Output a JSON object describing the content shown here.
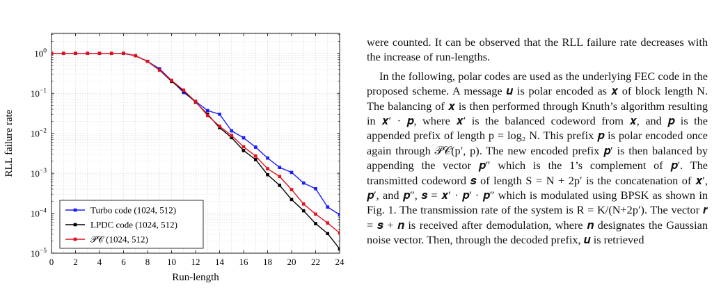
{
  "chart_data": {
    "type": "line",
    "title": "",
    "xlabel": "Run-length",
    "ylabel": "RLL failure rate",
    "xlim": [
      0,
      24
    ],
    "ylim_log10": [
      -5,
      0.5
    ],
    "yscale": "log",
    "x_ticks": [
      "0",
      "2",
      "4",
      "6",
      "8",
      "10",
      "12",
      "14",
      "16",
      "18",
      "20",
      "22",
      "24"
    ],
    "y_ticks": [
      {
        "base": "10",
        "exp": "0"
      },
      {
        "base": "10",
        "exp": "−1"
      },
      {
        "base": "10",
        "exp": "−2"
      },
      {
        "base": "10",
        "exp": "−3"
      },
      {
        "base": "10",
        "exp": "−4"
      },
      {
        "base": "10",
        "exp": "−5"
      }
    ],
    "grid": true,
    "legend_position": "bottom-left",
    "series": [
      {
        "name": "Turbo code (1024, 512)",
        "color": "#1a1aff",
        "x": [
          0,
          1,
          2,
          3,
          4,
          5,
          6,
          7,
          8,
          9,
          10,
          11,
          12,
          13,
          14,
          15,
          16,
          17,
          18,
          19,
          20,
          21,
          22,
          23,
          24
        ],
        "y": [
          1,
          1,
          1,
          1,
          1,
          1,
          1,
          0.87,
          0.63,
          0.41,
          0.21,
          0.105,
          0.063,
          0.037,
          0.03,
          0.0115,
          0.0077,
          0.0045,
          0.0024,
          0.0014,
          0.00105,
          0.00057,
          0.00041,
          0.000143,
          9.2e-05
        ]
      },
      {
        "name": "LPDC code (1024, 512)",
        "color": "#000000",
        "x": [
          0,
          1,
          2,
          3,
          4,
          5,
          6,
          7,
          8,
          9,
          10,
          11,
          12,
          13,
          14,
          15,
          16,
          17,
          18,
          19,
          20,
          21,
          22,
          23,
          24
        ],
        "y": [
          1,
          1,
          1,
          1,
          1,
          1,
          1,
          0.87,
          0.63,
          0.38,
          0.2,
          0.115,
          0.06,
          0.03,
          0.0138,
          0.0078,
          0.0037,
          0.0022,
          0.00092,
          0.0005,
          0.00022,
          0.000115,
          5.5e-05,
          3.1e-05,
          1.28e-05
        ]
      },
      {
        "name": "PC(1024, 512)",
        "color": "#e0111f",
        "x": [
          0,
          1,
          2,
          3,
          4,
          5,
          6,
          7,
          8,
          9,
          10,
          11,
          12,
          13,
          14,
          15,
          16,
          17,
          18,
          19,
          20,
          21,
          22,
          23,
          24
        ],
        "y": [
          1,
          1,
          1,
          1,
          1,
          1,
          1,
          0.87,
          0.63,
          0.38,
          0.21,
          0.12,
          0.062,
          0.028,
          0.015,
          0.0088,
          0.0046,
          0.0027,
          0.0013,
          0.00083,
          0.00039,
          0.00017,
          9.5e-05,
          5.7e-05,
          3.2e-05
        ]
      }
    ]
  },
  "legend": [
    {
      "name": "Turbo code",
      "code": "(1024, 512)",
      "color": "#1a1aff"
    },
    {
      "name": "LPDC code",
      "code": "(1024, 512)",
      "color": "#000000"
    },
    {
      "name": "𝒫𝒞",
      "code": "(1024, 512)",
      "color": "#e0111f"
    }
  ],
  "body_text": {
    "para1": "were counted. It can be observed that the RLL failure rate decreases with the increase of run-lengths.",
    "para2": "In the following, polar codes are used as the underlying FEC code in the proposed scheme. A message 𝒖 is polar encoded as 𝒙 of block length N. The balancing of 𝒙 is then performed through Knuth’s algorithm resulting in 𝒙′ · 𝒑, where 𝒙′ is the balanced codeword from 𝒙, and 𝒑 is the appended prefix of length p = log₂ N. This prefix 𝒑 is polar encoded once again through 𝒫𝒞(p′, p). The new encoded prefix 𝒑′ is then balanced by appending the vector 𝒑″ which is the 1’s complement of 𝒑′. The transmitted codeword 𝒔 of length S = N + 2p′ is the concatenation of 𝒙′, 𝒑′, and 𝒑″, 𝒔 = 𝒙′ · 𝒑′ · 𝒑″ which is modulated using BPSK as shown in Fig. 1. The transmission rate of the system is R = K/(N+2p′). The vector 𝒓 = 𝒔 + 𝒏 is received after demodulation, where 𝒏 designates the Gaussian noise vector. Then, through the decoded prefix, 𝒖 is retrieved"
  }
}
